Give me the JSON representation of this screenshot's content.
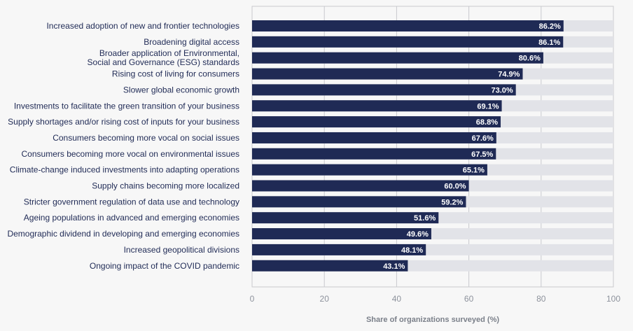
{
  "chart_data": {
    "type": "bar",
    "orientation": "horizontal",
    "categories": [
      [
        "Increased adoption of new and frontier technologies"
      ],
      [
        "Broadening digital access"
      ],
      [
        "Broader application of Environmental,",
        "Social and Governance (ESG) standards"
      ],
      [
        "Rising cost of living for consumers"
      ],
      [
        "Slower global economic growth"
      ],
      [
        "Investments to facilitate the green transition of your business"
      ],
      [
        "Supply shortages and/or rising cost of inputs for your business"
      ],
      [
        "Consumers becoming more vocal on social issues"
      ],
      [
        "Consumers becoming more vocal on environmental issues"
      ],
      [
        "Climate-change induced investments into adapting operations"
      ],
      [
        "Supply chains becoming more localized"
      ],
      [
        "Stricter government regulation of data use and technology"
      ],
      [
        "Ageing populations in advanced and emerging economies"
      ],
      [
        "Demographic dividend in developing and emerging economies"
      ],
      [
        "Increased geopolitical divisions"
      ],
      [
        "Ongoing impact of the COVID pandemic"
      ]
    ],
    "values": [
      86.2,
      86.1,
      80.6,
      74.9,
      73.0,
      69.1,
      68.8,
      67.6,
      67.5,
      65.1,
      60.0,
      59.2,
      51.6,
      49.6,
      48.1,
      43.1
    ],
    "value_labels": [
      "86.2%",
      "86.1%",
      "80.6%",
      "74.9%",
      "73.0%",
      "69.1%",
      "68.8%",
      "67.6%",
      "67.5%",
      "65.1%",
      "60.0%",
      "59.2%",
      "51.6%",
      "49.6%",
      "48.1%",
      "43.1%"
    ],
    "xlabel": "Share of organizations surveyed (%)",
    "xlim": [
      0,
      100
    ],
    "xticks": [
      0,
      20,
      40,
      60,
      80,
      100
    ],
    "grid": true,
    "colors": {
      "bar": "#1f2a55",
      "track": "#e2e3e8",
      "grid": "#c8c9ce",
      "background": "#f7f7f7"
    }
  }
}
